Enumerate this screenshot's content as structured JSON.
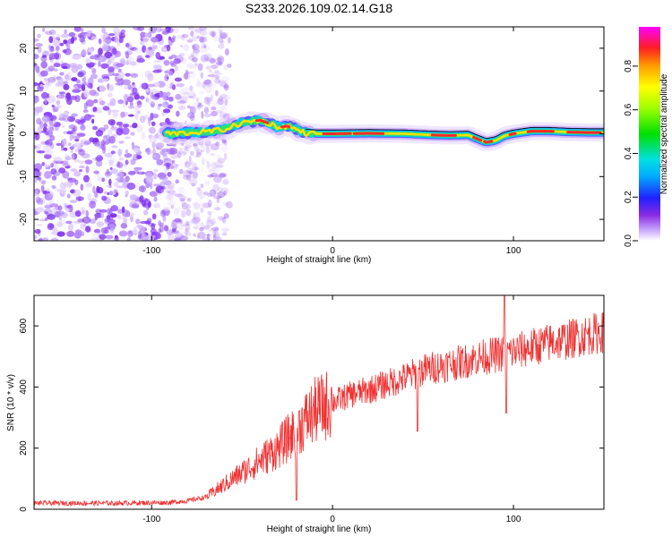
{
  "title": "S233.2026.109.02.14.G18",
  "chart_data": [
    {
      "type": "heatmap",
      "xlabel": "Height of straight line (km)",
      "ylabel": "Frequency (Hz)",
      "xlim": [
        -165,
        150
      ],
      "ylim": [
        -25,
        25
      ],
      "xticks": [
        -100,
        0,
        100
      ],
      "yticks": [
        -20,
        -10,
        0,
        10,
        20
      ],
      "ridge": [
        [
          -90,
          0
        ],
        [
          -80,
          0.2
        ],
        [
          -70,
          0.5
        ],
        [
          -60,
          1.0
        ],
        [
          -50,
          2.5
        ],
        [
          -40,
          3.2
        ],
        [
          -35,
          2.4
        ],
        [
          -30,
          1.5
        ],
        [
          -25,
          1.8
        ],
        [
          -20,
          1.0
        ],
        [
          -15,
          0.2
        ],
        [
          -10,
          0.0
        ],
        [
          0,
          0.0
        ],
        [
          20,
          0.1
        ],
        [
          40,
          0.0
        ],
        [
          55,
          -0.3
        ],
        [
          65,
          -0.4
        ],
        [
          75,
          -0.3
        ],
        [
          80,
          -1.2
        ],
        [
          85,
          -2.0
        ],
        [
          90,
          -1.6
        ],
        [
          95,
          -0.5
        ],
        [
          100,
          0.0
        ],
        [
          110,
          0.6
        ],
        [
          120,
          0.6
        ],
        [
          130,
          0.4
        ],
        [
          140,
          0.3
        ],
        [
          150,
          0.3
        ]
      ],
      "noise_region_end_km": -65,
      "colorbar": {
        "label": "Normalized spectral amplitude",
        "ticks": [
          "0.0",
          "0.2",
          "0.4",
          "0.6",
          "0.8"
        ],
        "range": [
          0,
          0.98
        ]
      }
    },
    {
      "type": "line",
      "xlabel": "Height of straight line (km)",
      "ylabel": "SNR (10 * v/v)",
      "xlim": [
        -165,
        150
      ],
      "ylim": [
        0,
        700
      ],
      "xticks": [
        -100,
        0,
        100
      ],
      "yticks": [
        0,
        200,
        400,
        600
      ],
      "color": "#f03030",
      "trend": [
        [
          -165,
          20
        ],
        [
          -120,
          20
        ],
        [
          -90,
          22
        ],
        [
          -80,
          28
        ],
        [
          -70,
          40
        ],
        [
          -60,
          80
        ],
        [
          -50,
          120
        ],
        [
          -40,
          160
        ],
        [
          -30,
          200
        ],
        [
          -20,
          260
        ],
        [
          -10,
          320
        ],
        [
          0,
          350
        ],
        [
          10,
          375
        ],
        [
          20,
          390
        ],
        [
          30,
          410
        ],
        [
          40,
          430
        ],
        [
          50,
          455
        ],
        [
          60,
          470
        ],
        [
          70,
          480
        ],
        [
          80,
          495
        ],
        [
          90,
          505
        ],
        [
          100,
          515
        ],
        [
          110,
          530
        ],
        [
          120,
          545
        ],
        [
          130,
          555
        ],
        [
          140,
          570
        ],
        [
          150,
          580
        ]
      ],
      "spikes": [
        {
          "x": 47,
          "y": 255
        },
        {
          "x": -20,
          "y": 30
        },
        {
          "x": 95,
          "y": 700
        },
        {
          "x": 96,
          "y": 315
        }
      ]
    }
  ]
}
